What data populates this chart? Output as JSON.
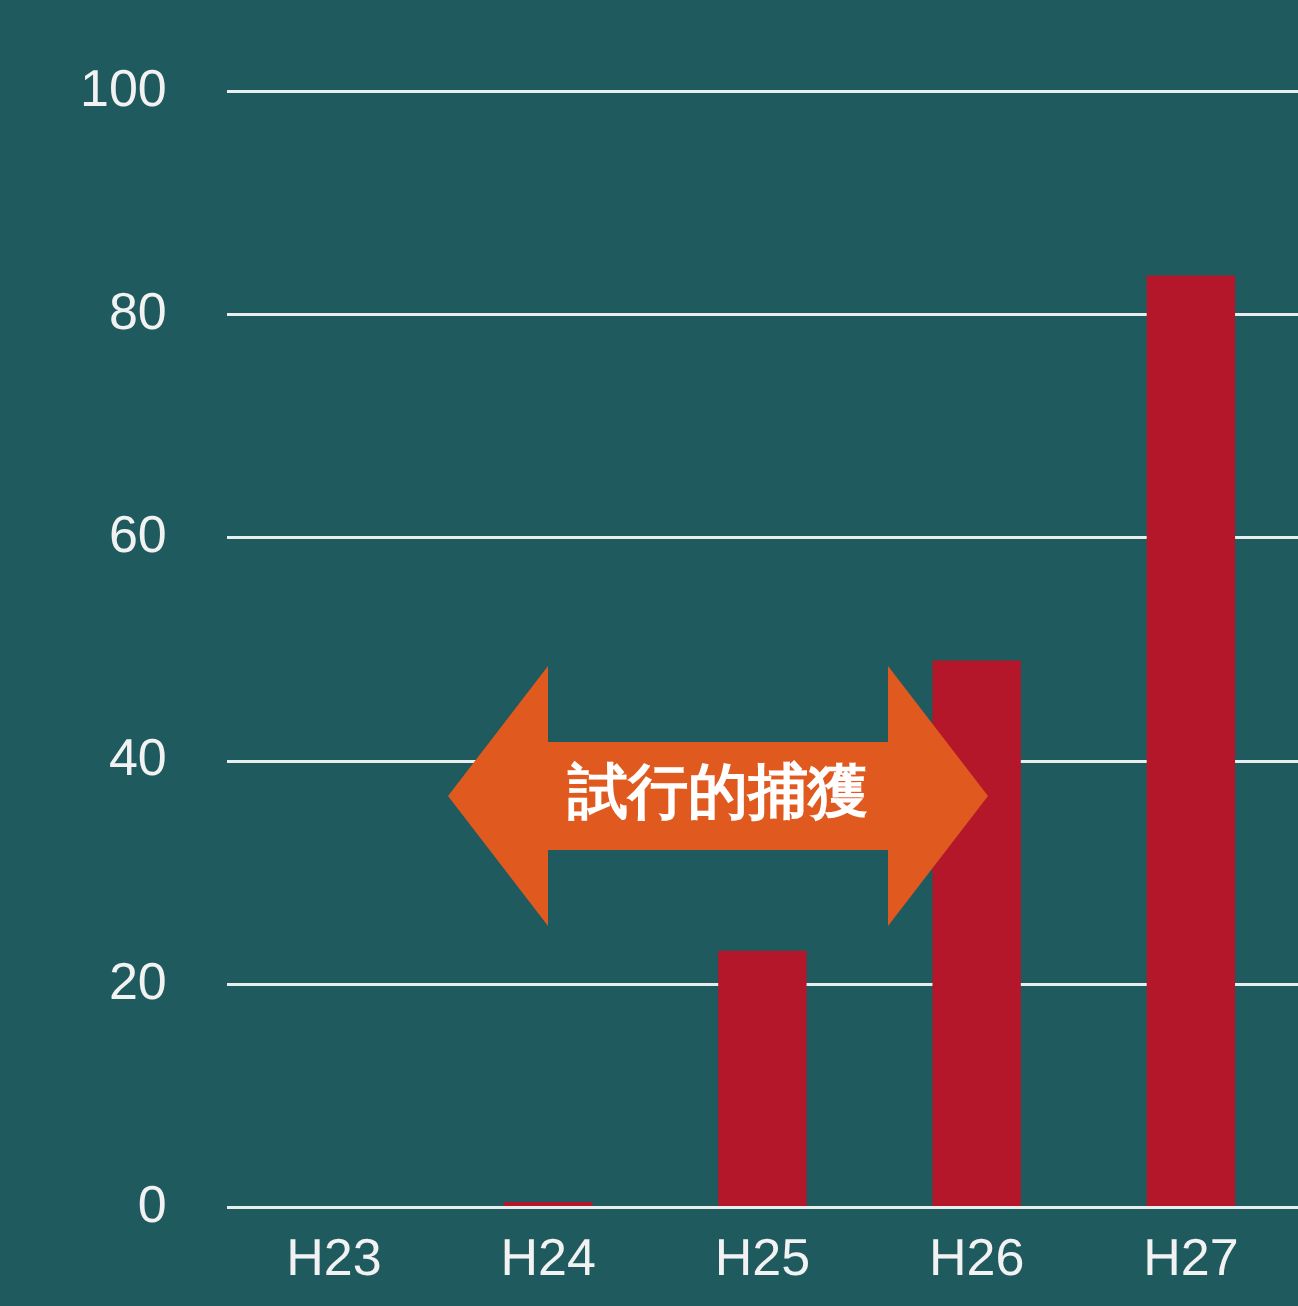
{
  "chart_data": {
    "type": "bar",
    "categories": [
      "H23",
      "H24",
      "H25",
      "H26",
      "H27"
    ],
    "values": [
      0,
      0.5,
      23,
      49,
      83.5
    ],
    "color": "#b5172a",
    "ylim": [
      0,
      100
    ],
    "yticks": [
      0,
      20,
      40,
      60,
      80,
      100
    ],
    "grid": "y",
    "annotations": [
      "試行的捕獲"
    ]
  }
}
